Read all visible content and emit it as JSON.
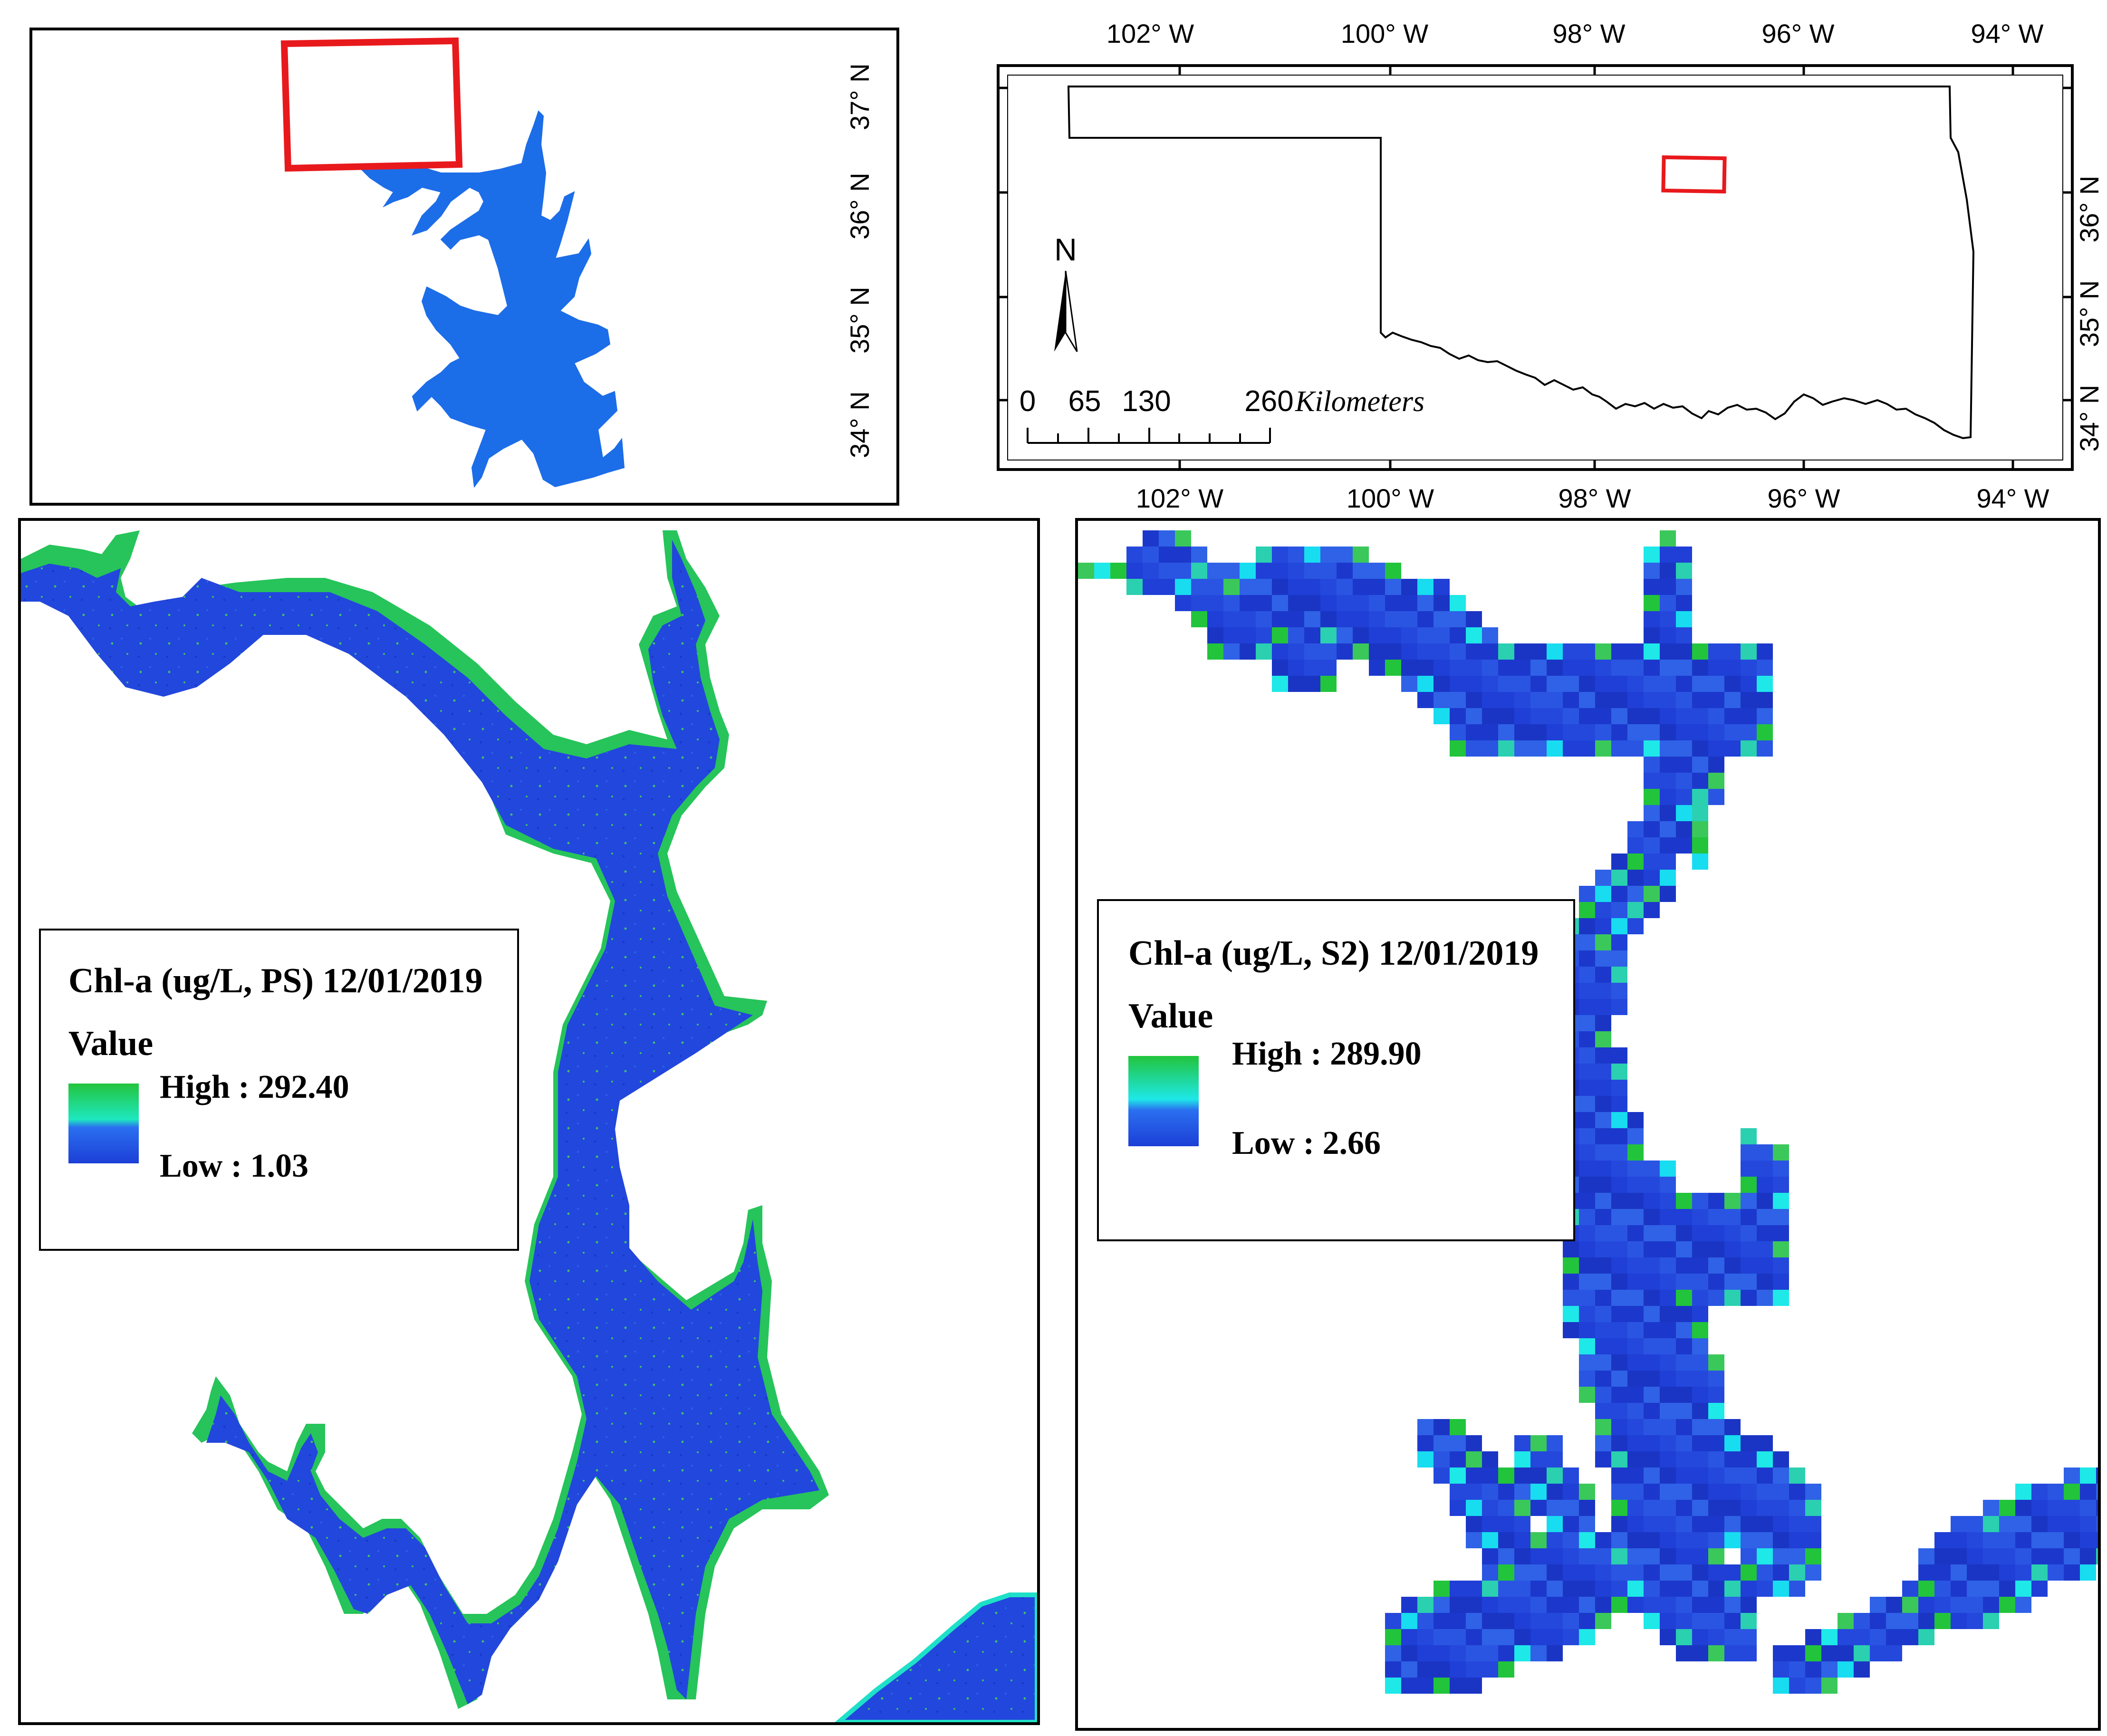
{
  "colors": {
    "water_low": "#1f3fd6",
    "water_mid": "#1e6fe8",
    "water_high_cyan": "#1ee8e8",
    "water_high_green": "#22c43c",
    "overview_fill": "#1c6de8",
    "highlight": "#e8191c",
    "frame": "#000000"
  },
  "overview_map": {
    "lat_labels": [
      "37° N",
      "36° N",
      "35° N",
      "34° N"
    ]
  },
  "locator_map": {
    "top_lon_labels": [
      "102° W",
      "100° W",
      "98° W",
      "96° W",
      "94° W"
    ],
    "bottom_lon_labels": [
      "102° W",
      "100° W",
      "98° W",
      "96° W",
      "94° W"
    ],
    "right_lat_labels": [
      "36° N",
      "35° N",
      "34° N"
    ],
    "north_arrow": {
      "label": "N",
      "icon": "north-arrow-icon"
    },
    "scale_bar": {
      "ticks": [
        "0",
        "65",
        "130",
        "260"
      ],
      "unit": "Kilometers"
    }
  },
  "ps_map": {
    "legend": {
      "title": "Chl-a (ug/L, PS) 12/01/2019",
      "subtitle": "Value",
      "high_label": "High : 292.40",
      "low_label": "Low : 1.03"
    }
  },
  "s2_map": {
    "legend": {
      "title": "Chl-a (ug/L, S2) 12/01/2019",
      "subtitle": "Value",
      "high_label": "High : 289.90",
      "low_label": "Low : 2.66"
    }
  }
}
